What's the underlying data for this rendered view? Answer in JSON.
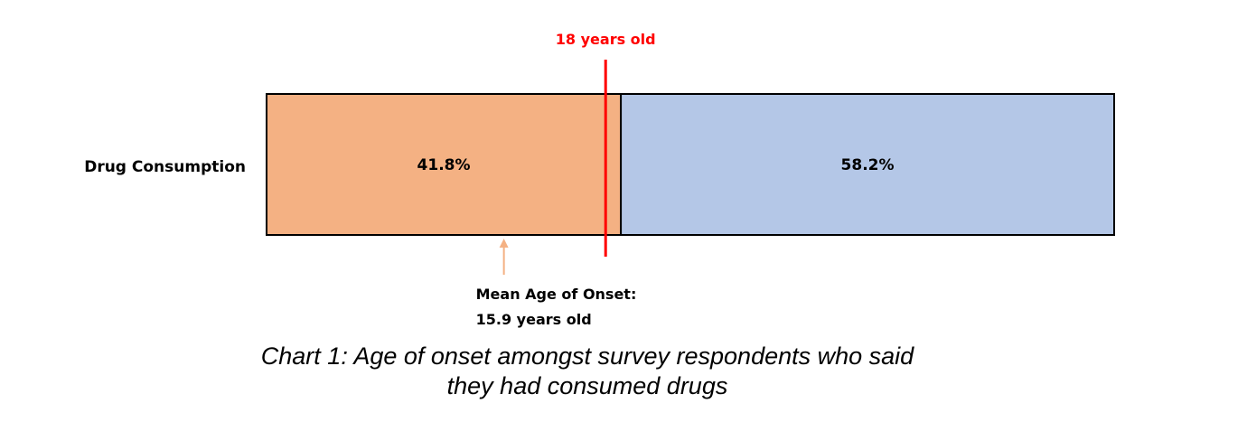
{
  "chart_data": {
    "type": "bar",
    "orientation": "horizontal",
    "stacked": true,
    "normalized_percent": true,
    "categories": [
      "Drug Consumption"
    ],
    "series": [
      {
        "values": [
          41.8
        ],
        "labels": [
          "41.8%"
        ],
        "color": "#f4b183"
      },
      {
        "values": [
          58.2
        ],
        "labels": [
          "58.2%"
        ],
        "color": "#b4c7e7"
      }
    ],
    "xlim": [
      0,
      100
    ],
    "grid": false,
    "legend": "none",
    "marker": {
      "label": "18 years old",
      "at_percent": 40,
      "color": "#ff0000"
    },
    "annotation": {
      "lines": [
        "Mean Age of Onset:",
        "15.9 years old"
      ],
      "at_percent": 28,
      "arrow_color": "#f4b183"
    }
  },
  "caption": {
    "line1": "Chart 1: Age of onset amongst survey respondents who said",
    "line2": "they had consumed drugs"
  }
}
